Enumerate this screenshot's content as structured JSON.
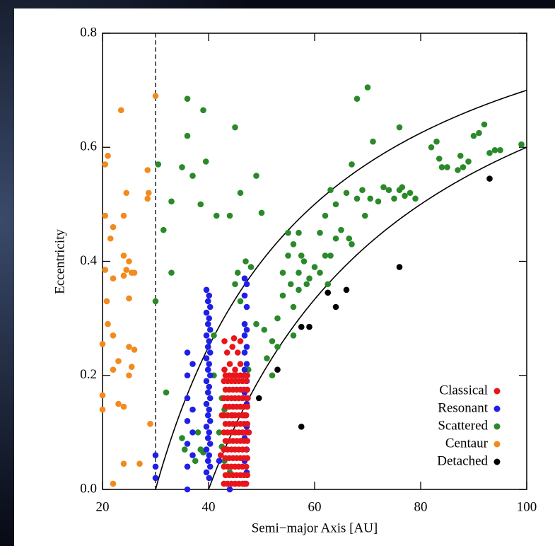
{
  "chart_data": {
    "type": "scatter",
    "x_label": "Semi−major Axis [AU]",
    "y_label": "Eccentricity",
    "xlim": [
      20,
      100
    ],
    "ylim": [
      0,
      0.8
    ],
    "xticks": [
      20,
      40,
      60,
      80,
      100
    ],
    "yticks": [
      {
        "value": 0,
        "label": "0.0"
      },
      0.2,
      0.4,
      0.6,
      0.8
    ],
    "legend": "lower right",
    "vline": 30,
    "curves": [
      30,
      40
    ],
    "series": [
      {
        "name": "Classical",
        "color": "#e8151b",
        "x": [
          42.9,
          43.6,
          44.3,
          45.0,
          45.7,
          46.4,
          47.1,
          43.2,
          43.9,
          44.6,
          45.3,
          46.0,
          46.7,
          47.3,
          42.9,
          43.6,
          44.3,
          45.0,
          45.7,
          46.4,
          47.1,
          43.2,
          43.9,
          44.6,
          45.3,
          46.0,
          46.7,
          47.3,
          42.9,
          43.6,
          44.3,
          45.0,
          45.7,
          46.4,
          47.1,
          43.2,
          43.9,
          44.6,
          45.3,
          46.0,
          46.7,
          47.3,
          42.9,
          43.6,
          44.3,
          45.0,
          45.7,
          46.4,
          47.1,
          43.2,
          43.9,
          44.6,
          45.3,
          46.0,
          46.7,
          47.3,
          42.9,
          43.6,
          44.3,
          45.0,
          45.7,
          46.4,
          47.1,
          43.2,
          43.9,
          44.6,
          45.3,
          46.0,
          46.7,
          47.3,
          42.9,
          43.6,
          44.3,
          45.0,
          45.7,
          46.4,
          47.1,
          43.2,
          43.9,
          44.6,
          45.3,
          46.0,
          46.7,
          47.3,
          42.9,
          43.6,
          44.3,
          45.0,
          45.7,
          46.4,
          47.1,
          43.2,
          43.9,
          44.6,
          45.3,
          46.0,
          46.7,
          47.3,
          43,
          44,
          45,
          46,
          43.5,
          44.5,
          45.5,
          46,
          43,
          44.8,
          42.5,
          42.3,
          47.6,
          47.4
        ],
        "values": [
          0.01,
          0.01,
          0.01,
          0.01,
          0.01,
          0.01,
          0.01,
          0.025,
          0.025,
          0.025,
          0.025,
          0.025,
          0.025,
          0.025,
          0.04,
          0.04,
          0.04,
          0.04,
          0.04,
          0.04,
          0.04,
          0.055,
          0.055,
          0.055,
          0.055,
          0.055,
          0.055,
          0.055,
          0.07,
          0.07,
          0.07,
          0.07,
          0.07,
          0.07,
          0.07,
          0.085,
          0.085,
          0.085,
          0.085,
          0.085,
          0.085,
          0.085,
          0.1,
          0.1,
          0.1,
          0.1,
          0.1,
          0.1,
          0.1,
          0.115,
          0.115,
          0.115,
          0.115,
          0.115,
          0.115,
          0.115,
          0.13,
          0.13,
          0.13,
          0.13,
          0.13,
          0.13,
          0.13,
          0.145,
          0.145,
          0.145,
          0.145,
          0.145,
          0.145,
          0.145,
          0.16,
          0.16,
          0.16,
          0.16,
          0.16,
          0.16,
          0.16,
          0.175,
          0.175,
          0.175,
          0.175,
          0.175,
          0.175,
          0.175,
          0.19,
          0.19,
          0.19,
          0.19,
          0.19,
          0.19,
          0.19,
          0.2,
          0.2,
          0.2,
          0.2,
          0.2,
          0.2,
          0.2,
          0.21,
          0.22,
          0.21,
          0.22,
          0.24,
          0.25,
          0.24,
          0.26,
          0.26,
          0.265,
          0.13,
          0.06,
          0.1,
          0.16
        ]
      },
      {
        "name": "Resonant",
        "color": "#1f1fe6",
        "x": [
          30,
          30,
          30,
          36,
          36,
          36,
          36,
          36,
          36,
          36,
          37,
          37,
          37,
          37,
          39.6,
          40.1,
          39.9,
          40.3,
          39.6,
          40.1,
          39.9,
          40.3,
          39.6,
          40.1,
          39.9,
          40.3,
          39.6,
          40.1,
          39.9,
          40.3,
          39.6,
          40.1,
          39.9,
          40.3,
          39.6,
          40.1,
          39.9,
          40.3,
          39.6,
          40.1,
          39.9,
          40.3,
          39.6,
          40.1,
          39.9,
          40.3,
          39.6,
          40.1,
          46.8,
          47.2,
          46.8,
          47.2,
          46.8,
          47.2,
          46.8,
          47.2,
          46.8,
          47.2,
          46.8,
          47.2,
          46.8,
          47.2,
          46.8,
          47.2,
          46.8,
          47.2,
          46.8,
          47.2,
          46.8,
          42,
          44
        ],
        "values": [
          0.06,
          0.04,
          0.02,
          0.24,
          0.2,
          0.16,
          0.12,
          0.08,
          0.04,
          0.0,
          0.22,
          0.14,
          0.1,
          0.06,
          0.35,
          0.34,
          0.33,
          0.32,
          0.31,
          0.3,
          0.29,
          0.28,
          0.27,
          0.26,
          0.25,
          0.24,
          0.23,
          0.22,
          0.21,
          0.2,
          0.19,
          0.18,
          0.17,
          0.16,
          0.15,
          0.14,
          0.13,
          0.12,
          0.11,
          0.1,
          0.09,
          0.08,
          0.07,
          0.06,
          0.05,
          0.04,
          0.03,
          0.02,
          0.37,
          0.36,
          0.34,
          0.32,
          0.29,
          0.28,
          0.27,
          0.25,
          0.24,
          0.22,
          0.21,
          0.19,
          0.17,
          0.15,
          0.13,
          0.11,
          0.09,
          0.07,
          0.05,
          0.03,
          0.01,
          0.05,
          0.0
        ]
      },
      {
        "name": "Scattered",
        "color": "#2a8a2a",
        "x": [
          30.5,
          30,
          32,
          31.5,
          33,
          33,
          35,
          36,
          36,
          37,
          39,
          39.5,
          38.5,
          41.5,
          44,
          45,
          46,
          42.5,
          43,
          44.5,
          45,
          44,
          35,
          35.5,
          37.5,
          38,
          38.5,
          42,
          41,
          42.5,
          43,
          45,
          45.5,
          46,
          47,
          47.5,
          49,
          49,
          50,
          50.5,
          51,
          52,
          52,
          53,
          53,
          54,
          54,
          55,
          55,
          55.5,
          56,
          56,
          56,
          57,
          57,
          57,
          57.5,
          58,
          58.5,
          59,
          60,
          61,
          61,
          62,
          62,
          62.5,
          63,
          63,
          64,
          64,
          65,
          66,
          66.5,
          67,
          67,
          68,
          68,
          69,
          69.5,
          70,
          70.5,
          71,
          72,
          73,
          74,
          75,
          76,
          76,
          76.5,
          77,
          78,
          79,
          82,
          83,
          83.5,
          84,
          85,
          87,
          87.5,
          88,
          89,
          90,
          91,
          92,
          93,
          94,
          95,
          99,
          48,
          41,
          39
        ],
        "values": [
          0.57,
          0.33,
          0.17,
          0.455,
          0.505,
          0.38,
          0.565,
          0.685,
          0.62,
          0.55,
          0.665,
          0.575,
          0.5,
          0.48,
          0.48,
          0.635,
          0.52,
          0.075,
          0.05,
          0.13,
          0.1,
          0.03,
          0.09,
          0.07,
          0.05,
          0.1,
          0.07,
          0.1,
          0.2,
          0.16,
          0.14,
          0.36,
          0.38,
          0.33,
          0.4,
          0.21,
          0.29,
          0.55,
          0.485,
          0.28,
          0.23,
          0.2,
          0.26,
          0.25,
          0.3,
          0.38,
          0.34,
          0.45,
          0.41,
          0.36,
          0.43,
          0.32,
          0.27,
          0.38,
          0.35,
          0.45,
          0.41,
          0.4,
          0.36,
          0.37,
          0.39,
          0.45,
          0.38,
          0.48,
          0.41,
          0.36,
          0.41,
          0.525,
          0.44,
          0.5,
          0.455,
          0.52,
          0.44,
          0.57,
          0.43,
          0.51,
          0.685,
          0.525,
          0.48,
          0.705,
          0.51,
          0.61,
          0.505,
          0.53,
          0.525,
          0.51,
          0.525,
          0.635,
          0.53,
          0.515,
          0.52,
          0.51,
          0.6,
          0.61,
          0.58,
          0.565,
          0.565,
          0.56,
          0.585,
          0.565,
          0.575,
          0.62,
          0.625,
          0.64,
          0.59,
          0.595,
          0.595,
          0.605,
          0.39,
          0.27,
          0.065
        ]
      },
      {
        "name": "Centaur",
        "color": "#f28a1e",
        "x": [
          20.5,
          21,
          20.5,
          22,
          21.5,
          20.5,
          22,
          20.8,
          21,
          22,
          20,
          22,
          20,
          20,
          23,
          23,
          24,
          23.5,
          24.5,
          24,
          24,
          24.5,
          24,
          25,
          25.5,
          26,
          25,
          25,
          26,
          25.5,
          25,
          24,
          22,
          27,
          28.5,
          28.7,
          28.5,
          29,
          30
        ],
        "values": [
          0.57,
          0.585,
          0.48,
          0.46,
          0.44,
          0.385,
          0.37,
          0.33,
          0.29,
          0.27,
          0.255,
          0.21,
          0.165,
          0.14,
          0.225,
          0.15,
          0.145,
          0.665,
          0.52,
          0.48,
          0.41,
          0.385,
          0.375,
          0.4,
          0.38,
          0.38,
          0.335,
          0.25,
          0.245,
          0.215,
          0.2,
          0.045,
          0.01,
          0.045,
          0.56,
          0.52,
          0.51,
          0.115,
          0.69
        ]
      },
      {
        "name": "Detached",
        "color": "#000000",
        "x": [
          49.5,
          53,
          57.5,
          57.5,
          59,
          62.5,
          64,
          66,
          76,
          93
        ],
        "values": [
          0.16,
          0.21,
          0.11,
          0.285,
          0.285,
          0.345,
          0.32,
          0.35,
          0.39,
          0.545
        ]
      }
    ]
  }
}
